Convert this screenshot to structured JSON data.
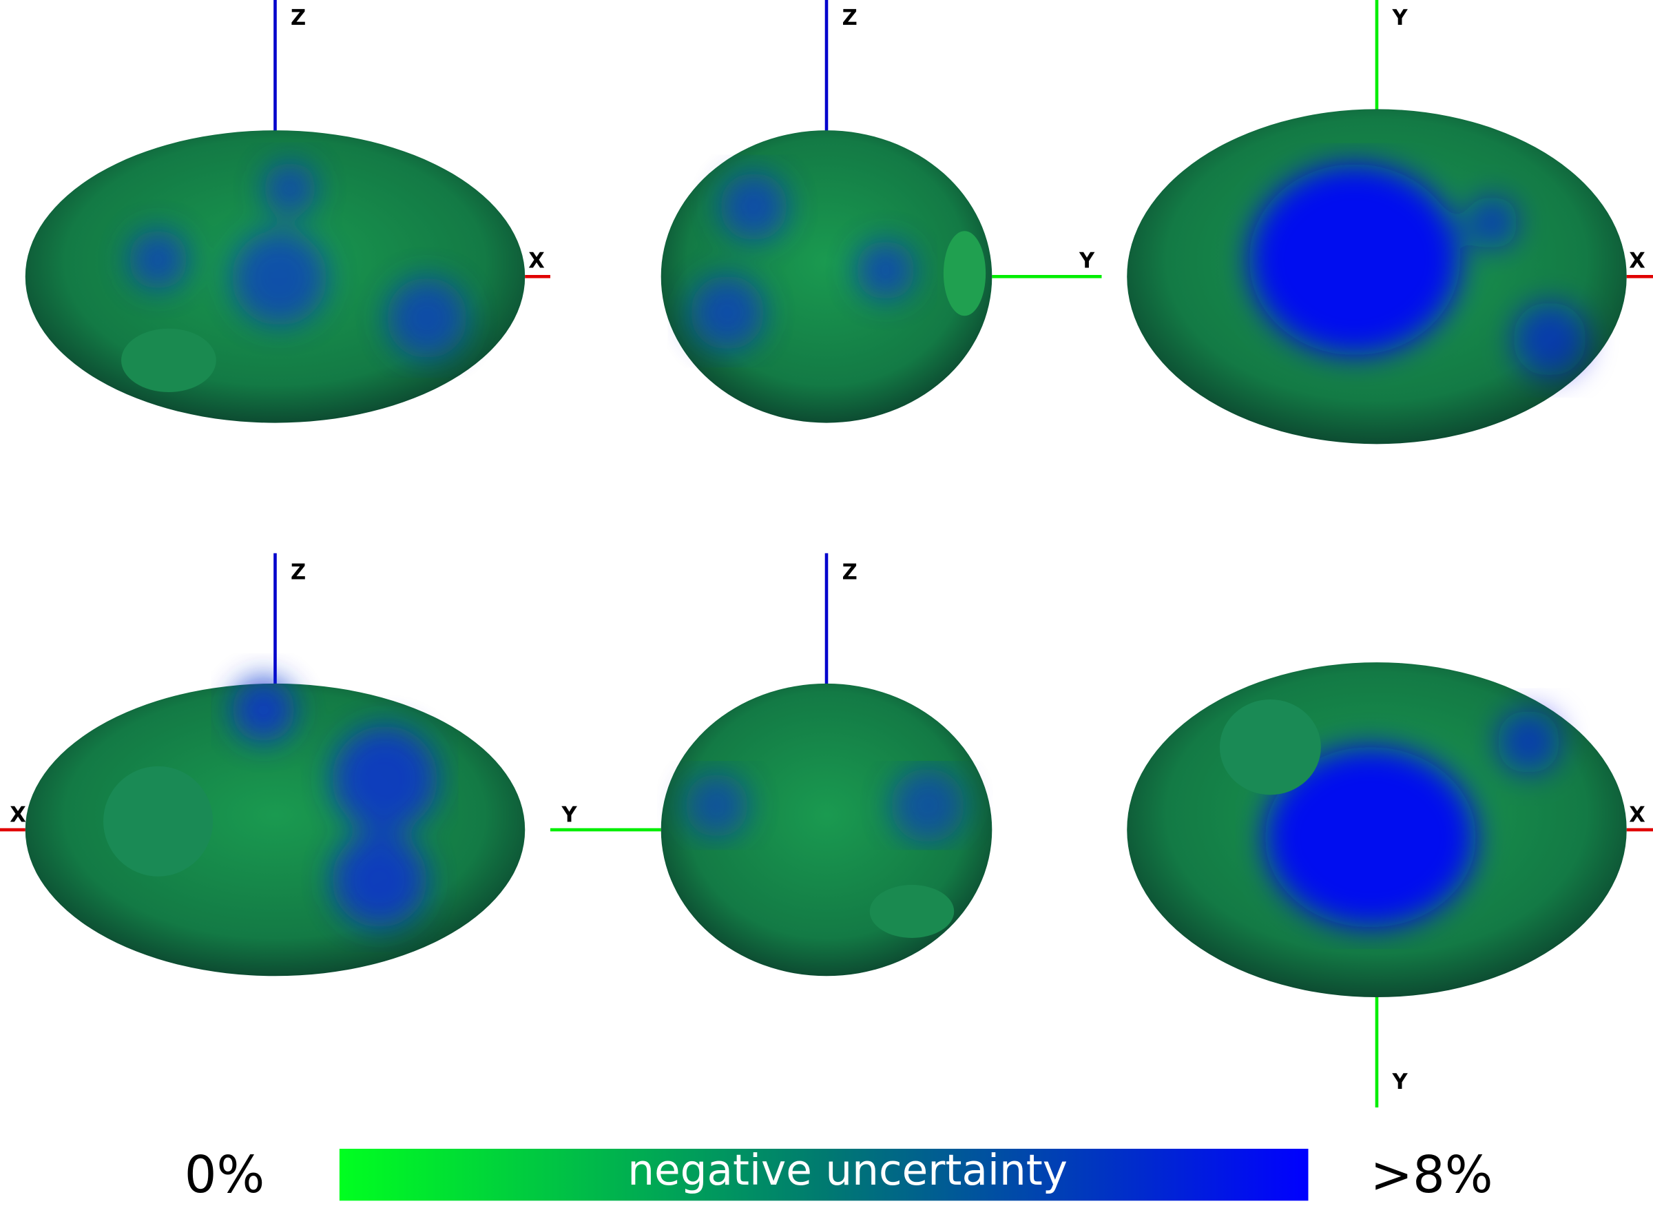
{
  "views": [
    {
      "axes": [
        "Z",
        "X"
      ]
    },
    {
      "axes": [
        "Z",
        "Y"
      ]
    },
    {
      "axes": [
        "Y",
        "X"
      ]
    },
    {
      "axes": [
        "Z",
        "X"
      ]
    },
    {
      "axes": [
        "Z",
        "Y"
      ]
    },
    {
      "axes": [
        "Y",
        "X"
      ]
    }
  ],
  "colorbar": {
    "min_label": "0%",
    "max_label": ">8%",
    "title": "negative uncertainty"
  }
}
